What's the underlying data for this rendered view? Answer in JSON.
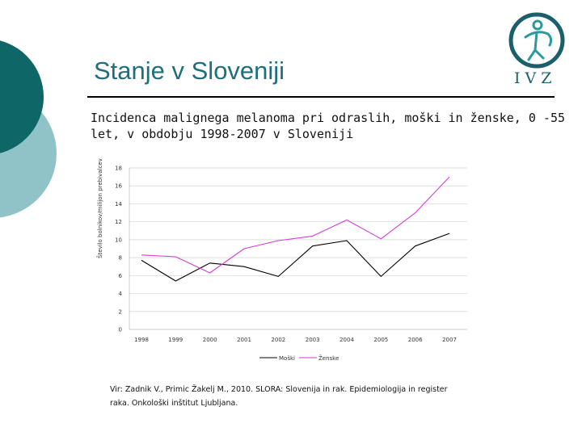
{
  "slide": {
    "title": "Stanje v Sloveniji",
    "subtitle": "Incidenca malignega melanoma pri odraslih, moški in ženske, 0 -55 let, v obdobju 1998-2007 v Sloveniji",
    "source": "Vir: Zadnik V., Primic Žakelj M., 2010. SLORA: Slovenija in rak. Epidemiologija in register raka. Onkološki inštitut Ljubljana.",
    "logo_text": "IVZ"
  },
  "colors": {
    "men": "#000000",
    "women": "#d63ad6",
    "grid": "#d3d3d3",
    "accent": "#1e6f7a"
  },
  "chart_data": {
    "type": "line",
    "categories": [
      "1998",
      "1999",
      "2000",
      "2001",
      "2002",
      "2003",
      "2004",
      "2005",
      "2006",
      "2007"
    ],
    "series": [
      {
        "name": "Moški",
        "values": [
          7.7,
          5.4,
          7.4,
          7.0,
          5.9,
          9.3,
          9.9,
          5.9,
          9.3,
          10.7
        ]
      },
      {
        "name": "Ženske",
        "values": [
          8.3,
          8.1,
          6.3,
          9.0,
          9.9,
          10.4,
          12.2,
          10.1,
          13.0,
          17.0
        ]
      }
    ],
    "title": "",
    "xlabel": "",
    "ylabel": "Število bolnikov/milijon prebivalcev",
    "ylim": [
      0,
      18
    ],
    "yticks": [
      "0",
      "2",
      "4",
      "6",
      "8",
      "10",
      "12",
      "14",
      "16",
      "18"
    ],
    "grid": true,
    "legend": "bottom"
  }
}
